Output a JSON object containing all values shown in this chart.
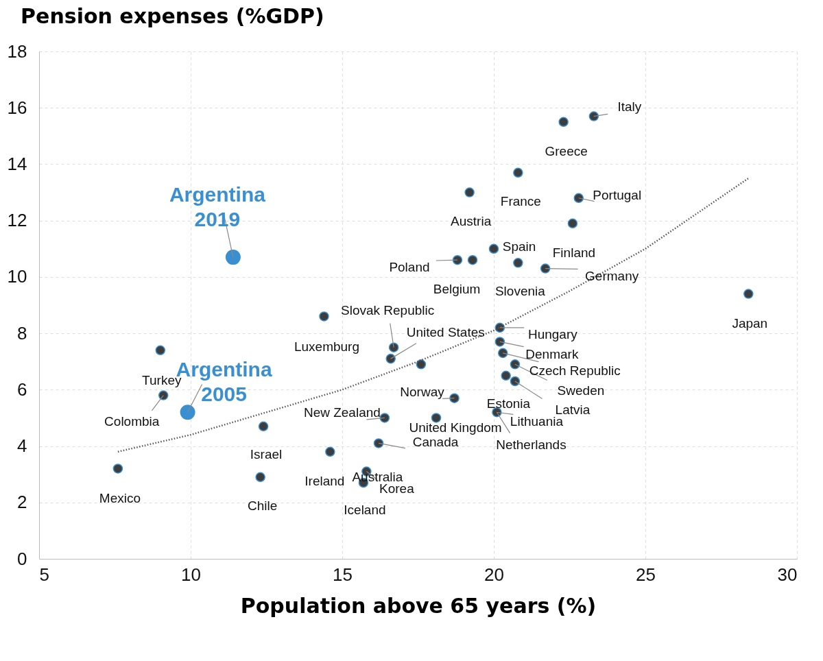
{
  "chart_data": {
    "type": "scatter",
    "title": "Pension expenses (%GDP)",
    "xlabel": "Population above 65 years (%)",
    "xlim": [
      5,
      30
    ],
    "xticks": [
      5,
      10,
      15,
      20,
      25,
      30
    ],
    "ylim": [
      0,
      18
    ],
    "yticks": [
      0,
      2,
      4,
      6,
      8,
      10,
      12,
      14,
      16,
      18
    ],
    "grid": true,
    "series": [
      {
        "color": "#3d3d3d",
        "marker": "circle",
        "x": [
          23.3,
          22.3,
          20.8,
          19.2,
          22.8,
          22.6,
          20.0,
          20.8,
          18.8,
          19.3,
          21.7,
          28.4,
          14.4,
          16.7,
          16.6,
          17.6,
          18.7,
          20.2,
          20.2,
          20.3,
          20.7,
          20.4,
          20.7,
          20.1,
          16.4,
          18.1,
          16.2,
          14.6,
          15.8,
          15.7,
          12.4,
          12.3,
          7.6,
          9.0,
          9.1
        ],
        "values": [
          15.7,
          15.5,
          13.7,
          13.0,
          12.8,
          11.9,
          11.0,
          10.5,
          10.6,
          10.6,
          10.3,
          9.4,
          8.6,
          7.5,
          7.1,
          6.9,
          5.7,
          8.2,
          7.7,
          7.3,
          6.9,
          6.5,
          6.3,
          5.2,
          5.0,
          5.0,
          4.1,
          3.8,
          3.1,
          2.7,
          4.7,
          2.9,
          3.2,
          7.4,
          5.8
        ]
      },
      {
        "color": "#3a8fd0",
        "marker": "circle",
        "x": [
          11.4,
          9.9
        ],
        "values": [
          10.7,
          5.2
        ]
      },
      {
        "type": "line",
        "color": "#555555",
        "line_style": "dotted",
        "x": [
          7.6,
          10,
          12.5,
          15,
          17.5,
          20,
          22.5,
          25,
          28.4
        ],
        "values": [
          3.8,
          4.4,
          5.2,
          6.0,
          7.0,
          8.1,
          9.5,
          11.0,
          13.5
        ]
      }
    ],
    "annotations": [
      {
        "text": "Italy",
        "x": 23.3,
        "y": 15.7
      },
      {
        "text": "Greece",
        "x": 22.3,
        "y": 15.5
      },
      {
        "text": "France",
        "x": 20.8,
        "y": 13.7
      },
      {
        "text": "Austria",
        "x": 19.2,
        "y": 13.0
      },
      {
        "text": "Portugal",
        "x": 22.8,
        "y": 12.8
      },
      {
        "text": "Finland",
        "x": 22.6,
        "y": 11.9
      },
      {
        "text": "Spain",
        "x": 20.0,
        "y": 11.0
      },
      {
        "text": "Slovenia",
        "x": 20.8,
        "y": 10.5
      },
      {
        "text": "Poland",
        "x": 18.8,
        "y": 10.6
      },
      {
        "text": "Belgium",
        "x": 19.3,
        "y": 10.6
      },
      {
        "text": "Germany",
        "x": 21.7,
        "y": 10.3
      },
      {
        "text": "Japan",
        "x": 28.4,
        "y": 9.4
      },
      {
        "text": "Luxemburg",
        "x": 14.4,
        "y": 8.6
      },
      {
        "text": "Slovak Republic",
        "x": 16.7,
        "y": 7.5
      },
      {
        "text": "United States",
        "x": 16.6,
        "y": 7.1
      },
      {
        "text": "Norway",
        "x": 18.7,
        "y": 5.7
      },
      {
        "text": "Hungary",
        "x": 20.2,
        "y": 8.2
      },
      {
        "text": "Denmark",
        "x": 20.2,
        "y": 7.7
      },
      {
        "text": "Czech Republic",
        "x": 20.3,
        "y": 7.3
      },
      {
        "text": "Sweden",
        "x": 20.7,
        "y": 6.9
      },
      {
        "text": "Latvia",
        "x": 20.7,
        "y": 6.3
      },
      {
        "text": "Estonia",
        "x": 20.1,
        "y": 5.2
      },
      {
        "text": "Lithuania",
        "x": 20.1,
        "y": 5.2
      },
      {
        "text": "Netherlands",
        "x": 20.1,
        "y": 5.2
      },
      {
        "text": "New Zealand",
        "x": 16.4,
        "y": 5.0
      },
      {
        "text": "United Kingdom",
        "x": 18.1,
        "y": 5.0
      },
      {
        "text": "Canada",
        "x": 16.2,
        "y": 4.1
      },
      {
        "text": "Ireland",
        "x": 14.6,
        "y": 3.8
      },
      {
        "text": "Australia",
        "x": 15.8,
        "y": 3.1
      },
      {
        "text": "Korea",
        "x": 15.8,
        "y": 3.1
      },
      {
        "text": "Iceland",
        "x": 15.7,
        "y": 2.7
      },
      {
        "text": "Israel",
        "x": 12.4,
        "y": 4.7
      },
      {
        "text": "Chile",
        "x": 12.3,
        "y": 2.9
      },
      {
        "text": "Mexico",
        "x": 7.6,
        "y": 3.2
      },
      {
        "text": "Turkey",
        "x": 9.0,
        "y": 7.4
      },
      {
        "text": "Colombia",
        "x": 9.1,
        "y": 5.8
      },
      {
        "text": "Argentina 2019",
        "x": 11.4,
        "y": 10.7
      },
      {
        "text": "Argentina 2005",
        "x": 9.9,
        "y": 5.2
      }
    ]
  }
}
